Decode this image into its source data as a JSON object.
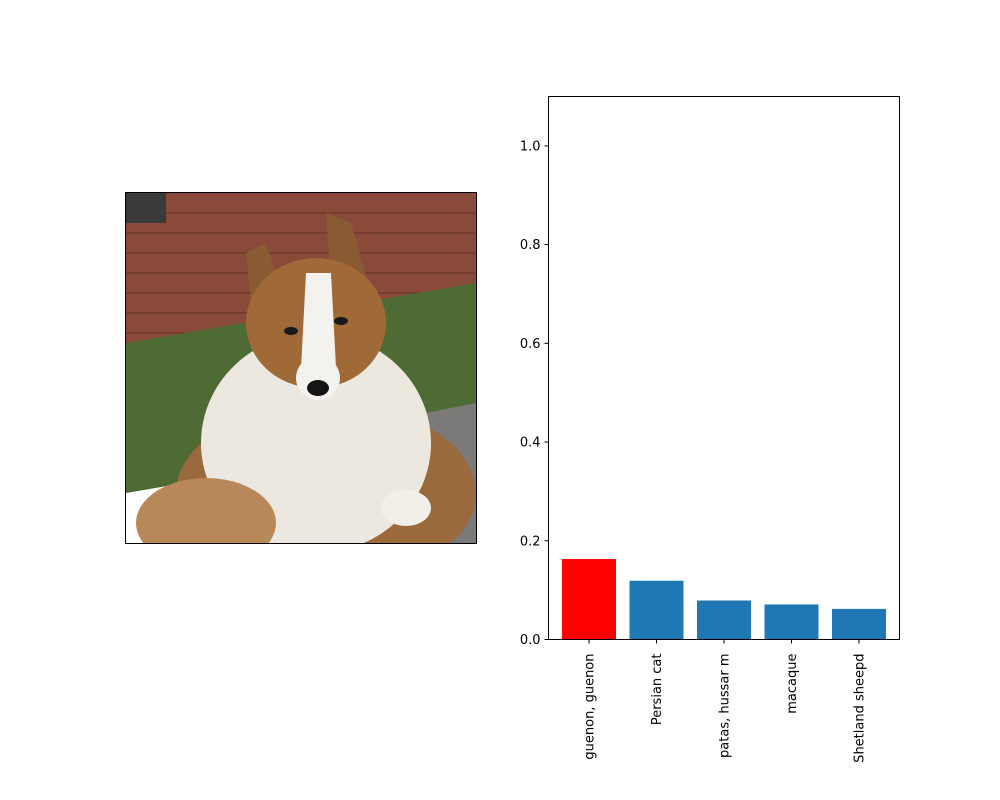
{
  "photo": {
    "subject": "Shetland sheepdog sitting in front of a brick wall and grass",
    "colors": {
      "brick": "#8a4a3a",
      "grass": "#4f6b34",
      "fur_white": "#ece8e0",
      "fur_sable": "#9a6a3c",
      "gravel": "#7c7a78"
    }
  },
  "chart_data": {
    "type": "bar",
    "categories": [
      "guenon, guenon",
      "Persian cat",
      "patas, hussar m",
      "macaque",
      "Shetland sheepd"
    ],
    "values": [
      0.163,
      0.119,
      0.079,
      0.071,
      0.062
    ],
    "colors": [
      "#ff0000",
      "#1f77b4",
      "#1f77b4",
      "#1f77b4",
      "#1f77b4"
    ],
    "ylim": [
      0,
      1.1
    ],
    "yticks": [
      0.0,
      0.2,
      0.4,
      0.6,
      0.8,
      1.0
    ],
    "ytick_labels": [
      "0.0",
      "0.2",
      "0.4",
      "0.6",
      "0.8",
      "1.0"
    ],
    "title": "",
    "xlabel": "",
    "ylabel": "",
    "grid": false,
    "xtick_rotation": "vertical"
  }
}
